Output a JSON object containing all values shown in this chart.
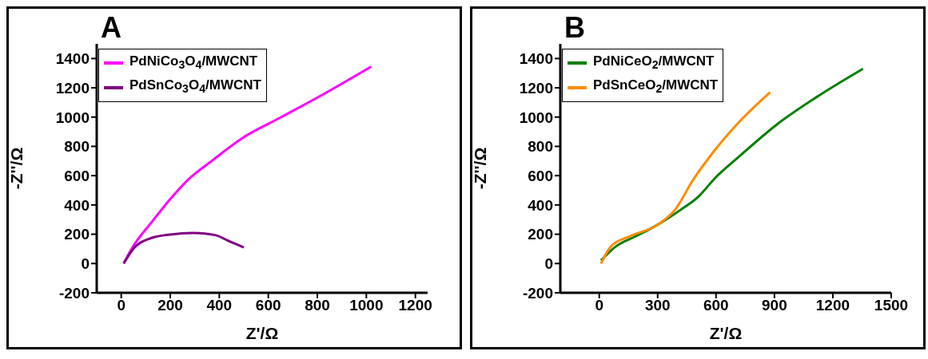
{
  "chart_data": [
    {
      "type": "line",
      "annotations": [
        "A"
      ],
      "xlabel": "Z'/Ω",
      "ylabel": "-Z''/Ω",
      "xlim": [
        -100,
        1250
      ],
      "xticks": [
        0,
        200,
        400,
        600,
        800,
        1000,
        1200
      ],
      "ylim": [
        -200,
        1500
      ],
      "yticks": [
        -200,
        0,
        200,
        400,
        600,
        800,
        1000,
        1200,
        1400
      ],
      "grid": false,
      "legend": "top left",
      "marker": "none",
      "line_style": "solid",
      "series": [
        {
          "name": "PdNiCo$_{3}$O$_{4}$/MWCNT",
          "color": "#ff00ff",
          "x": [
            10,
            35,
            130,
            200,
            281,
            375,
            491,
            645,
            821,
            1020
          ],
          "values": [
            0,
            80,
            295,
            440,
            585,
            708,
            853,
            993,
            1153,
            1345
          ]
        },
        {
          "name": "PdSnCo$_{3}$O$_{4}$/MWCNT",
          "color": "#800080",
          "x": [
            10,
            49,
            119,
            200,
            295,
            386,
            435,
            500
          ],
          "values": [
            0,
            100,
            172,
            198,
            209,
            193,
            156,
            110
          ]
        }
      ]
    },
    {
      "type": "line",
      "annotations": [
        "B"
      ],
      "xlabel": "Z'/Ω",
      "ylabel": "-Z''/Ω",
      "xlim": [
        -200,
        1500
      ],
      "xticks": [
        0,
        300,
        600,
        900,
        1200,
        1500
      ],
      "ylim": [
        -200,
        1500
      ],
      "yticks": [
        -200,
        0,
        200,
        400,
        600,
        800,
        1000,
        1200,
        1400
      ],
      "grid": false,
      "legend": "top left",
      "marker": "none",
      "line_style": "solid",
      "series": [
        {
          "name": "PdNiCeO$_{2}$/MWCNT",
          "color": "#008000",
          "x": [
            9,
            87,
            191,
            304,
            422,
            509,
            596,
            713,
            913,
            1117,
            1355
          ],
          "values": [
            21,
            118,
            188,
            268,
            370,
            456,
            585,
            724,
            950,
            1137,
            1330
          ]
        },
        {
          "name": "PdSnCeO$_{2}$/MWCNT",
          "color": "#ff8c00",
          "x": [
            9,
            61,
            161,
            304,
            391,
            478,
            596,
            726,
            878
          ],
          "values": [
            0,
            118,
            188,
            268,
            370,
            563,
            778,
            977,
            1170
          ]
        }
      ]
    }
  ]
}
